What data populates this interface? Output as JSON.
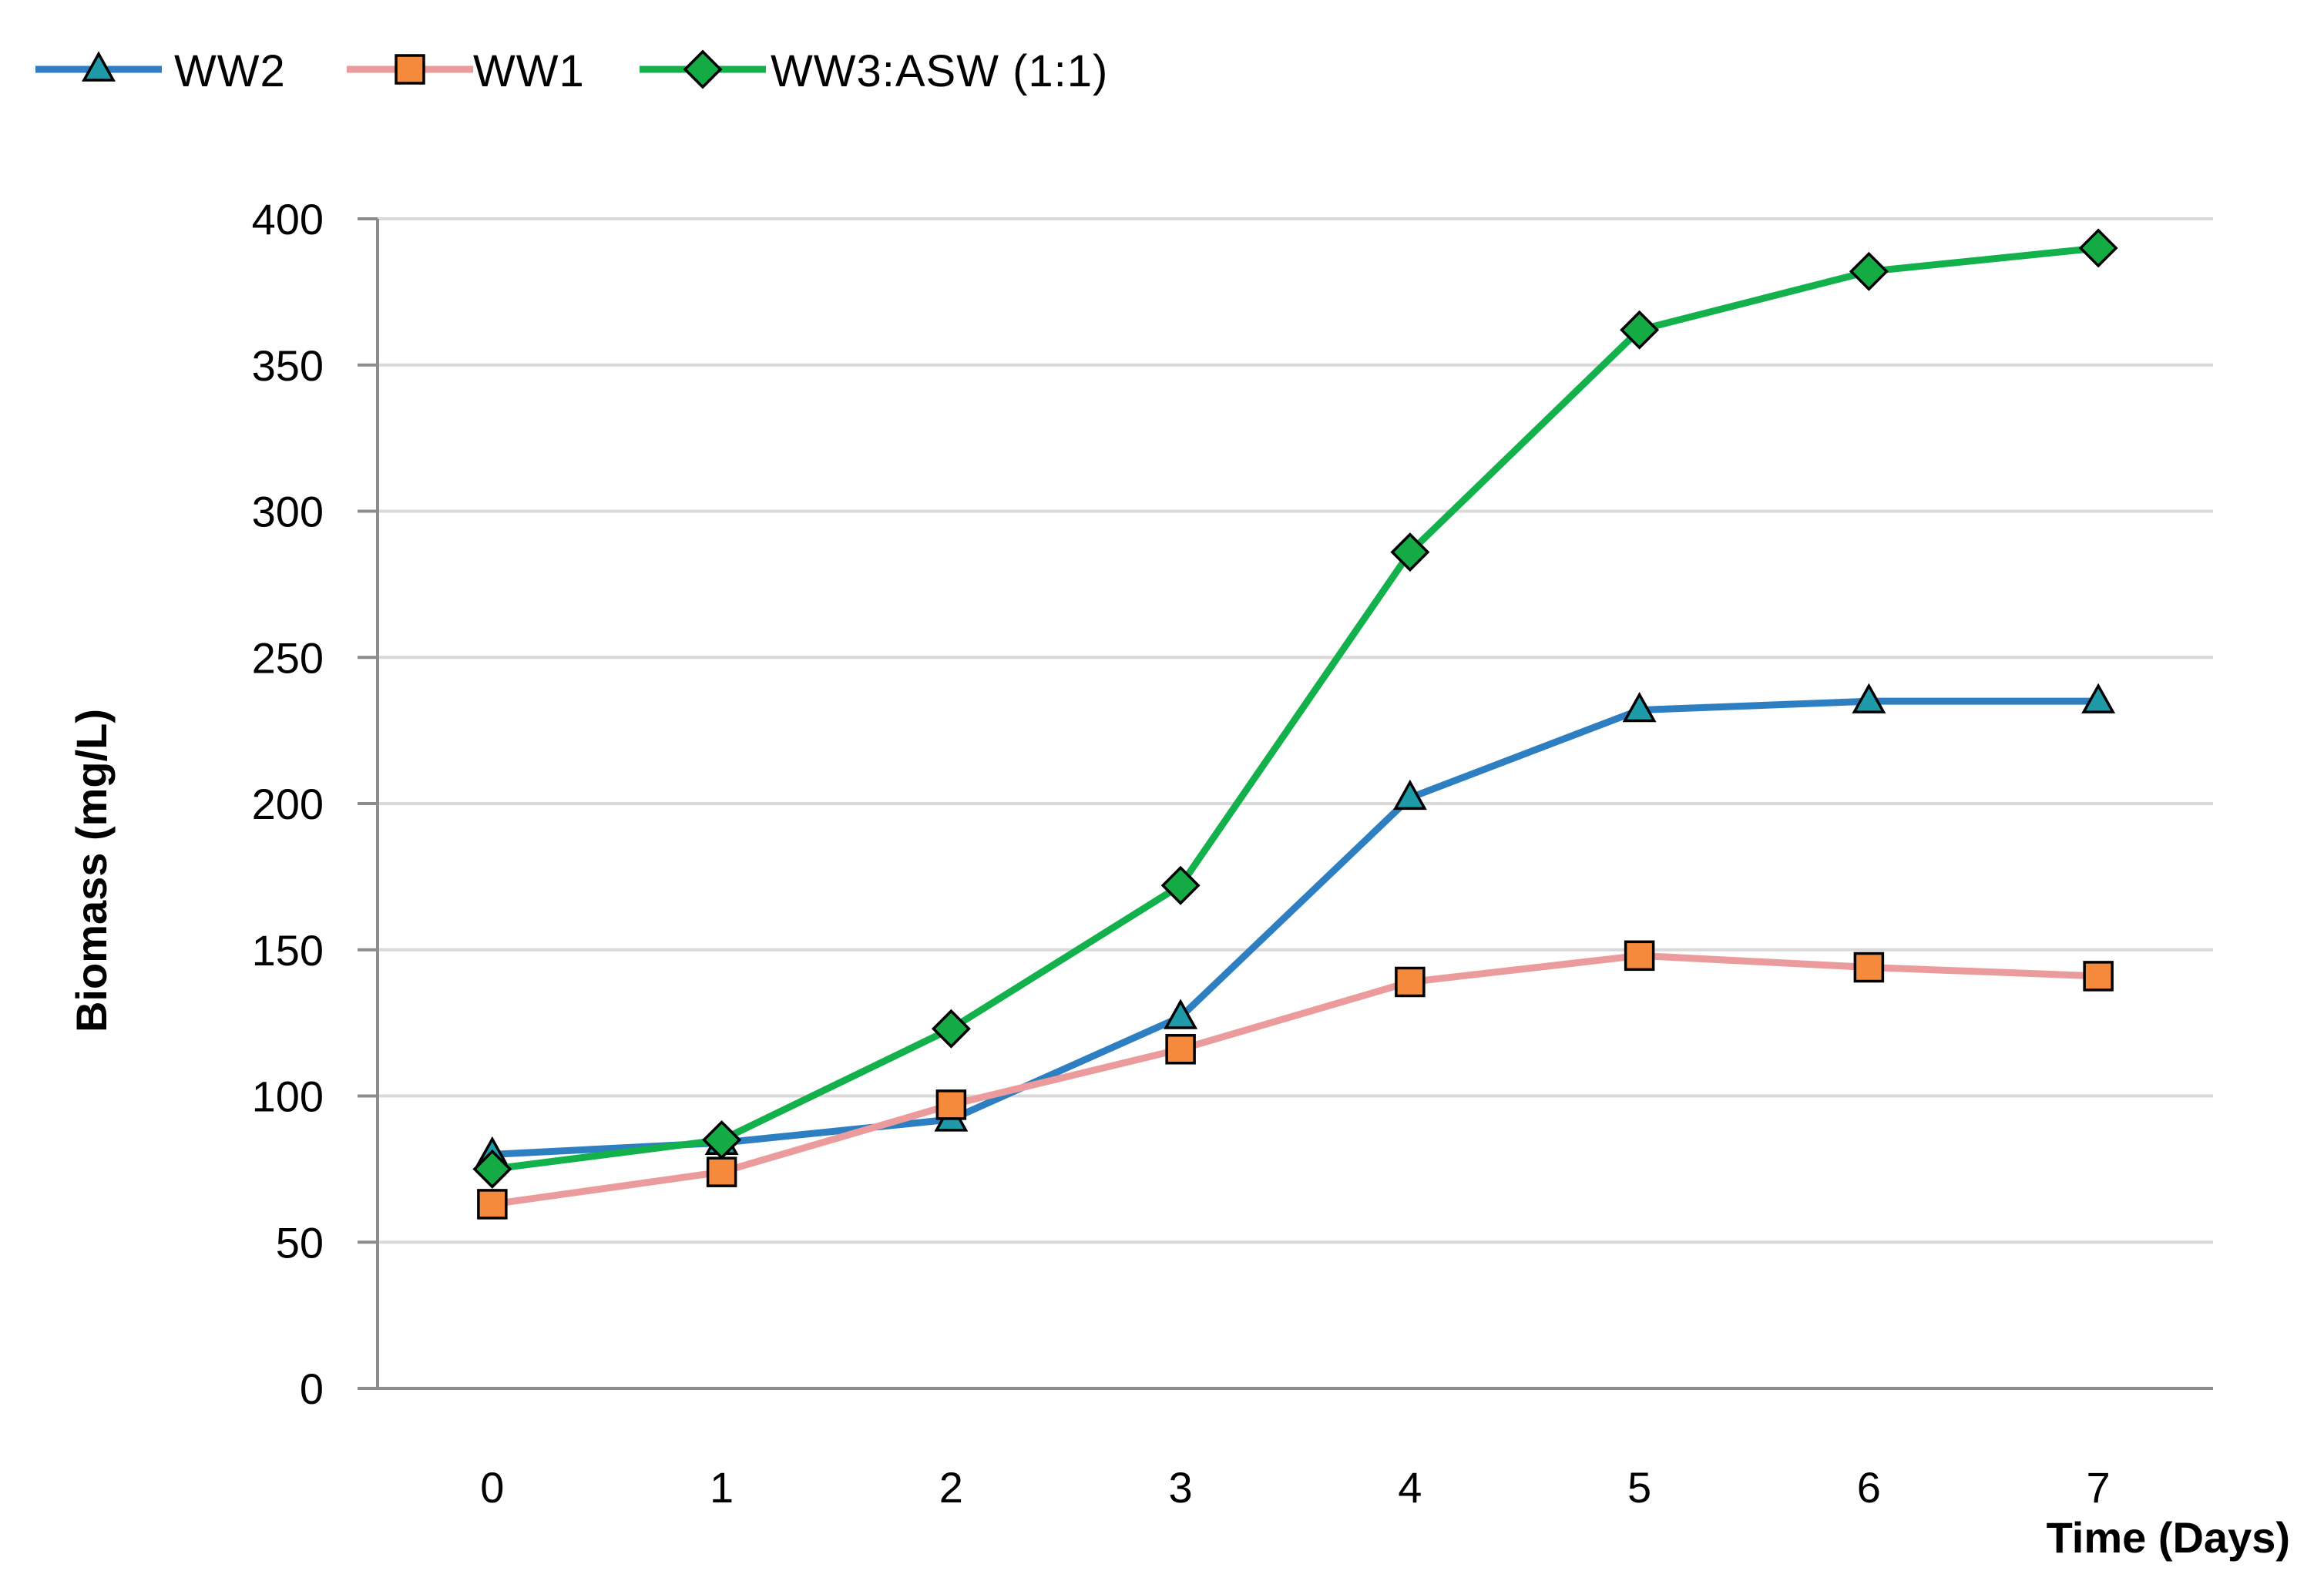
{
  "chart_data": {
    "type": "line",
    "xlabel": "Time (Days)",
    "ylabel": "Biomass (mg/L)",
    "x": [
      0,
      1,
      2,
      3,
      4,
      5,
      6,
      7
    ],
    "xlim": [
      -0.5,
      7.5
    ],
    "ylim": [
      0,
      400
    ],
    "yticks": [
      0,
      50,
      100,
      150,
      200,
      250,
      300,
      350,
      400
    ],
    "grid": "horizontal",
    "legend_position": "top-left",
    "series": [
      {
        "name": "WW2",
        "marker": "triangle",
        "line_color": "#2e7fc1",
        "marker_color": "#1f9aa8",
        "values": [
          80,
          84,
          92,
          127,
          202,
          232,
          235,
          235
        ]
      },
      {
        "name": "WW1",
        "marker": "square",
        "line_color": "#eb9b9b",
        "marker_color": "#f68a3c",
        "values": [
          63,
          74,
          97,
          116,
          139,
          148,
          144,
          141
        ]
      },
      {
        "name": "WW3:ASW (1:1)",
        "marker": "diamond",
        "line_color": "#13b14b",
        "marker_color": "#14aa44",
        "values": [
          75,
          85,
          123,
          172,
          286,
          362,
          382,
          390
        ]
      }
    ]
  }
}
